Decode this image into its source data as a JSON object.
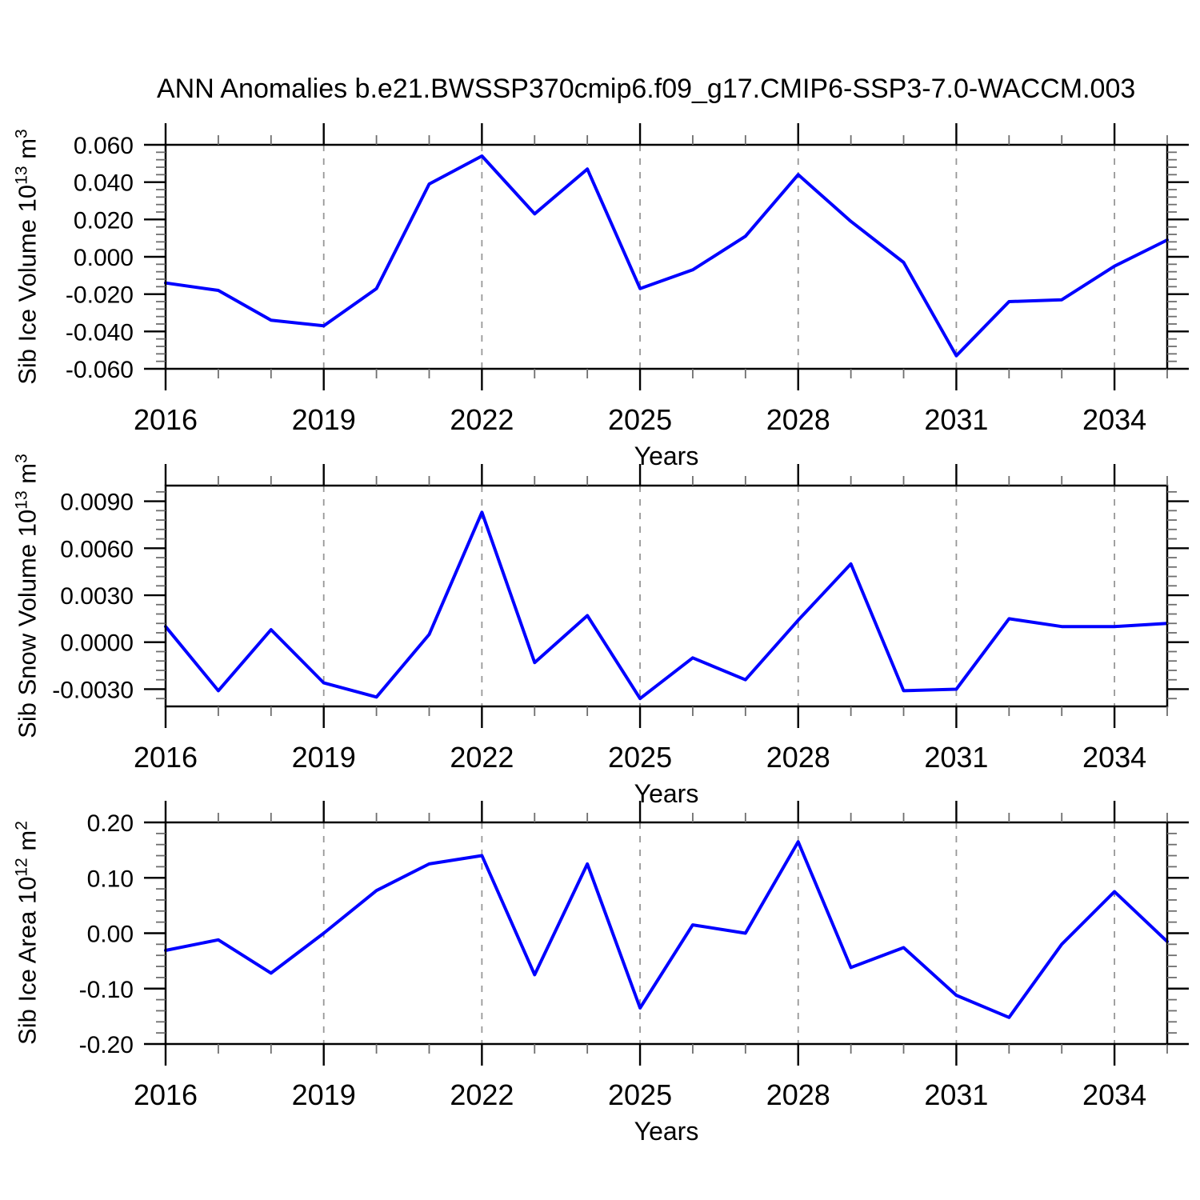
{
  "title": "ANN Anomalies b.e21.BWSSP370cmip6.f09_g17.CMIP6-SSP3-7.0-WACCM.003",
  "accent_color": "#0000ff",
  "chart_data": [
    {
      "type": "line",
      "id": "sib-ice-volume",
      "ylabel": "Sib Ice Volume 10¹³ m³",
      "ylabel_parts": {
        "prefix": "Sib Ice Volume 10",
        "sup1": "13",
        "mid": " m",
        "sup2": "3"
      },
      "xlabel": "Years",
      "x": [
        2016,
        2017,
        2018,
        2019,
        2020,
        2021,
        2022,
        2023,
        2024,
        2025,
        2026,
        2027,
        2028,
        2029,
        2030,
        2031,
        2032,
        2033,
        2034,
        2035
      ],
      "values": [
        -0.014,
        -0.018,
        -0.034,
        -0.037,
        -0.017,
        0.039,
        0.054,
        0.023,
        0.047,
        -0.017,
        -0.007,
        0.011,
        0.044,
        0.019,
        -0.003,
        -0.053,
        -0.024,
        -0.023,
        -0.005,
        0.009
      ],
      "xlim": [
        2016,
        2035
      ],
      "ylim": [
        -0.06,
        0.06
      ],
      "xticks": [
        2016,
        2019,
        2022,
        2025,
        2028,
        2031,
        2034
      ],
      "xtick_labels": [
        "2016",
        "2019",
        "2022",
        "2025",
        "2028",
        "2031",
        "2034"
      ],
      "x_minor_step": 1,
      "yticks": [
        {
          "value": 0.06,
          "label": "0.060"
        },
        {
          "value": 0.04,
          "label": "0.040"
        },
        {
          "value": 0.02,
          "label": "0.020"
        },
        {
          "value": 0.0,
          "label": "0.000"
        },
        {
          "value": -0.02,
          "label": "-0.020"
        },
        {
          "value": -0.04,
          "label": "-0.040"
        },
        {
          "value": -0.06,
          "label": "-0.060"
        }
      ],
      "y_major_step": 0.02,
      "y_minor_step": 0.004,
      "grid_x": [
        2019,
        2022,
        2025,
        2028,
        2031,
        2034
      ],
      "line_color": "#0000ff"
    },
    {
      "type": "line",
      "id": "sib-snow-volume",
      "ylabel": "Sib Snow Volume 10¹³ m³",
      "ylabel_parts": {
        "prefix": "Sib Snow Volume 10",
        "sup1": "13",
        "mid": " m",
        "sup2": "3"
      },
      "xlabel": "Years",
      "x": [
        2016,
        2017,
        2018,
        2019,
        2020,
        2021,
        2022,
        2023,
        2024,
        2025,
        2026,
        2027,
        2028,
        2029,
        2030,
        2031,
        2032,
        2033,
        2034,
        2035
      ],
      "values": [
        0.001,
        -0.0031,
        0.0008,
        -0.0026,
        -0.0035,
        0.0005,
        0.0083,
        -0.0013,
        0.0017,
        -0.0036,
        -0.001,
        -0.0024,
        0.0014,
        0.005,
        -0.0031,
        -0.003,
        0.0015,
        0.001,
        0.001,
        0.0012
      ],
      "xlim": [
        2016,
        2035
      ],
      "ylim": [
        -0.0041,
        0.01
      ],
      "xticks": [
        2016,
        2019,
        2022,
        2025,
        2028,
        2031,
        2034
      ],
      "xtick_labels": [
        "2016",
        "2019",
        "2022",
        "2025",
        "2028",
        "2031",
        "2034"
      ],
      "x_minor_step": 1,
      "yticks": [
        {
          "value": 0.009,
          "label": "0.0090"
        },
        {
          "value": 0.006,
          "label": "0.0060"
        },
        {
          "value": 0.003,
          "label": "0.0030"
        },
        {
          "value": 0.0,
          "label": "0.0000"
        },
        {
          "value": -0.003,
          "label": "-0.0030"
        }
      ],
      "y_major_step": 0.003,
      "y_minor_step": 0.0006,
      "grid_x": [
        2019,
        2022,
        2025,
        2028,
        2031,
        2034
      ],
      "line_color": "#0000ff"
    },
    {
      "type": "line",
      "id": "sib-ice-area",
      "ylabel": "Sib Ice Area 10¹² m²",
      "ylabel_parts": {
        "prefix": "Sib Ice Area 10",
        "sup1": "12",
        "mid": " m",
        "sup2": "2"
      },
      "xlabel": "Years",
      "x": [
        2016,
        2017,
        2018,
        2019,
        2020,
        2021,
        2022,
        2023,
        2024,
        2025,
        2026,
        2027,
        2028,
        2029,
        2030,
        2031,
        2032,
        2033,
        2034,
        2035
      ],
      "values": [
        -0.031,
        -0.012,
        -0.072,
        0.0,
        0.077,
        0.125,
        0.14,
        -0.075,
        0.125,
        -0.135,
        0.015,
        0.0,
        0.165,
        -0.062,
        -0.026,
        -0.112,
        -0.152,
        -0.02,
        0.075,
        -0.015
      ],
      "xlim": [
        2016,
        2035
      ],
      "ylim": [
        -0.2,
        0.2
      ],
      "xticks": [
        2016,
        2019,
        2022,
        2025,
        2028,
        2031,
        2034
      ],
      "xtick_labels": [
        "2016",
        "2019",
        "2022",
        "2025",
        "2028",
        "2031",
        "2034"
      ],
      "x_minor_step": 1,
      "yticks": [
        {
          "value": 0.2,
          "label": "0.20"
        },
        {
          "value": 0.1,
          "label": "0.10"
        },
        {
          "value": 0.0,
          "label": "0.00"
        },
        {
          "value": -0.1,
          "label": "-0.10"
        },
        {
          "value": -0.2,
          "label": "-0.20"
        }
      ],
      "y_major_step": 0.1,
      "y_minor_step": 0.02,
      "grid_x": [
        2019,
        2022,
        2025,
        2028,
        2031,
        2034
      ],
      "line_color": "#0000ff"
    }
  ]
}
